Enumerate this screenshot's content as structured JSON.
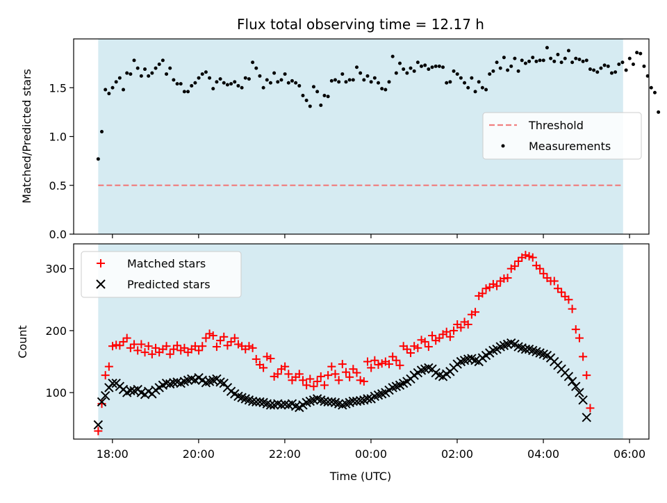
{
  "title": "Flux total observing time = 12.17 h",
  "colors": {
    "span": "#add8e6",
    "threshold": "#f08080",
    "measurements": "#000000",
    "matched": "#ff0000",
    "predicted": "#000000",
    "axes": "#000000"
  },
  "chart_data": [
    {
      "type": "scatter",
      "panel": "top",
      "ylabel": "Matched/Predicted stars",
      "xlabel": "",
      "ylim": [
        0,
        2.0
      ],
      "yticks": [
        "0.0",
        "0.5",
        "1.0",
        "1.5"
      ],
      "yticks_values": [
        0,
        0.5,
        1.0,
        1.5
      ],
      "xlim_hours": [
        -6.9,
        6.45
      ],
      "shaded_span_hours": [
        -6.33,
        5.85
      ],
      "legend_position": "center-right",
      "threshold": {
        "name": "Threshold",
        "value": 0.5,
        "style": "dashed"
      },
      "series": [
        {
          "name": "Measurements",
          "marker": "dot",
          "x_start_hours": -6.33,
          "x_step_minutes": 5,
          "values": [
            0.77,
            1.05,
            1.48,
            1.44,
            1.5,
            1.56,
            1.6,
            1.48,
            1.65,
            1.64,
            1.78,
            1.7,
            1.62,
            1.69,
            1.62,
            1.65,
            1.7,
            1.74,
            1.78,
            1.64,
            1.7,
            1.58,
            1.54,
            1.54,
            1.46,
            1.46,
            1.52,
            1.55,
            1.6,
            1.64,
            1.66,
            1.6,
            1.49,
            1.56,
            1.59,
            1.55,
            1.53,
            1.54,
            1.56,
            1.52,
            1.5,
            1.6,
            1.59,
            1.76,
            1.7,
            1.62,
            1.5,
            1.58,
            1.55,
            1.65,
            1.56,
            1.58,
            1.64,
            1.55,
            1.57,
            1.55,
            1.52,
            1.42,
            1.37,
            1.31,
            1.51,
            1.46,
            1.32,
            1.42,
            1.41,
            1.57,
            1.58,
            1.56,
            1.64,
            1.56,
            1.58,
            1.58,
            1.71,
            1.65,
            1.58,
            1.62,
            1.56,
            1.6,
            1.55,
            1.49,
            1.48,
            1.56,
            1.82,
            1.65,
            1.75,
            1.69,
            1.65,
            1.7,
            1.67,
            1.76,
            1.72,
            1.73,
            1.69,
            1.71,
            1.72,
            1.72,
            1.71,
            1.55,
            1.56,
            1.67,
            1.64,
            1.6,
            1.55,
            1.5,
            1.6,
            1.46,
            1.56,
            1.5,
            1.48,
            1.64,
            1.67,
            1.76,
            1.7,
            1.81,
            1.68,
            1.72,
            1.8,
            1.67,
            1.78,
            1.75,
            1.77,
            1.81,
            1.77,
            1.78,
            1.78,
            1.91,
            1.8,
            1.77,
            1.84,
            1.76,
            1.8,
            1.88,
            1.76,
            1.8,
            1.79,
            1.77,
            1.78,
            1.69,
            1.68,
            1.66,
            1.7,
            1.73,
            1.72,
            1.65,
            1.66,
            1.74,
            1.76,
            1.68,
            1.8,
            1.74,
            1.86,
            1.85,
            1.72,
            1.62,
            1.5,
            1.45,
            1.25
          ]
        }
      ]
    },
    {
      "type": "scatter",
      "panel": "bottom",
      "ylabel": "Count",
      "xlabel": "Time (UTC)",
      "ylim": [
        25,
        340
      ],
      "yticks": [
        "100",
        "200",
        "300"
      ],
      "yticks_values": [
        100,
        200,
        300
      ],
      "xlim_hours": [
        -6.9,
        6.45
      ],
      "shaded_span_hours": [
        -6.33,
        5.85
      ],
      "xticks": [
        "18:00",
        "20:00",
        "22:00",
        "00:00",
        "02:00",
        "04:00",
        "06:00"
      ],
      "xticks_hours": [
        -6,
        -4,
        -2,
        0,
        2,
        4,
        6
      ],
      "legend_position": "top-left",
      "series": [
        {
          "name": "Matched stars",
          "marker": "plus",
          "x_start_hours": -6.33,
          "x_step_minutes": 5,
          "values": [
            38,
            82,
            128,
            142,
            175,
            177,
            176,
            182,
            188,
            172,
            178,
            168,
            178,
            165,
            175,
            162,
            172,
            165,
            170,
            175,
            162,
            170,
            176,
            168,
            172,
            165,
            170,
            175,
            168,
            175,
            188,
            195,
            192,
            174,
            184,
            190,
            176,
            182,
            188,
            178,
            175,
            170,
            175,
            172,
            154,
            145,
            140,
            158,
            155,
            126,
            130,
            138,
            142,
            130,
            120,
            125,
            130,
            120,
            112,
            122,
            110,
            118,
            126,
            112,
            128,
            142,
            130,
            120,
            146,
            133,
            125,
            138,
            132,
            120,
            118,
            150,
            140,
            152,
            145,
            147,
            150,
            146,
            158,
            152,
            144,
            175,
            170,
            164,
            175,
            172,
            185,
            182,
            174,
            192,
            184,
            188,
            194,
            198,
            190,
            200,
            210,
            205,
            214,
            210,
            226,
            230,
            256,
            260,
            268,
            270,
            275,
            272,
            280,
            284,
            285,
            300,
            304,
            312,
            318,
            322,
            320,
            318,
            305,
            300,
            292,
            285,
            280,
            280,
            268,
            262,
            255,
            250,
            235,
            202,
            188,
            158,
            128,
            75
          ]
        },
        {
          "name": "Predicted stars",
          "marker": "x",
          "x_start_hours": -6.33,
          "x_step_minutes": 5,
          "values": [
            48,
            85,
            95,
            108,
            115,
            115,
            110,
            105,
            100,
            103,
            103,
            105,
            100,
            97,
            102,
            98,
            104,
            108,
            112,
            115,
            114,
            116,
            117,
            115,
            118,
            120,
            122,
            120,
            124,
            120,
            116,
            118,
            120,
            122,
            117,
            115,
            108,
            102,
            98,
            94,
            92,
            90,
            88,
            86,
            85,
            85,
            84,
            82,
            80,
            80,
            82,
            80,
            81,
            80,
            82,
            78,
            76,
            80,
            84,
            86,
            88,
            90,
            88,
            86,
            85,
            85,
            84,
            82,
            80,
            82,
            84,
            86,
            86,
            87,
            88,
            90,
            90,
            94,
            96,
            98,
            100,
            104,
            108,
            110,
            112,
            115,
            118,
            122,
            128,
            132,
            136,
            138,
            140,
            138,
            132,
            128,
            126,
            130,
            134,
            140,
            146,
            150,
            152,
            154,
            155,
            152,
            150,
            156,
            160,
            164,
            168,
            170,
            174,
            176,
            178,
            180,
            178,
            174,
            172,
            170,
            170,
            168,
            166,
            164,
            162,
            160,
            156,
            150,
            144,
            138,
            132,
            126,
            118,
            110,
            100,
            88,
            60
          ]
        }
      ]
    }
  ]
}
